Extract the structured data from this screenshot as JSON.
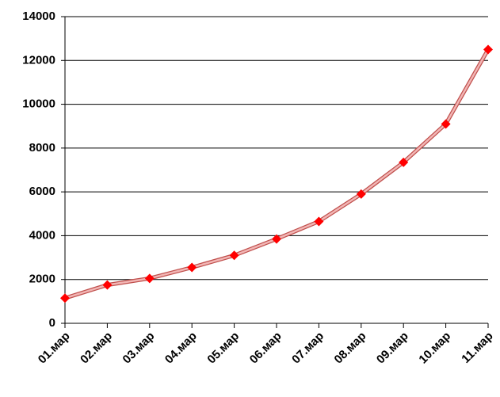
{
  "chart_data": {
    "type": "line",
    "categories": [
      "01.мар",
      "02.мар",
      "03.мар",
      "04.мар",
      "05.мар",
      "06.мар",
      "07.мар",
      "08.мар",
      "09.мар",
      "10.мар",
      "11.мар"
    ],
    "series": [
      {
        "values": [
          1150,
          1750,
          2050,
          2550,
          3100,
          3850,
          4650,
          5900,
          7350,
          9100,
          12500
        ],
        "color": "#ff0000"
      }
    ],
    "ylim": [
      0,
      14000
    ],
    "yticks": [
      0,
      2000,
      4000,
      6000,
      8000,
      10000,
      12000,
      14000
    ],
    "grid": true
  }
}
